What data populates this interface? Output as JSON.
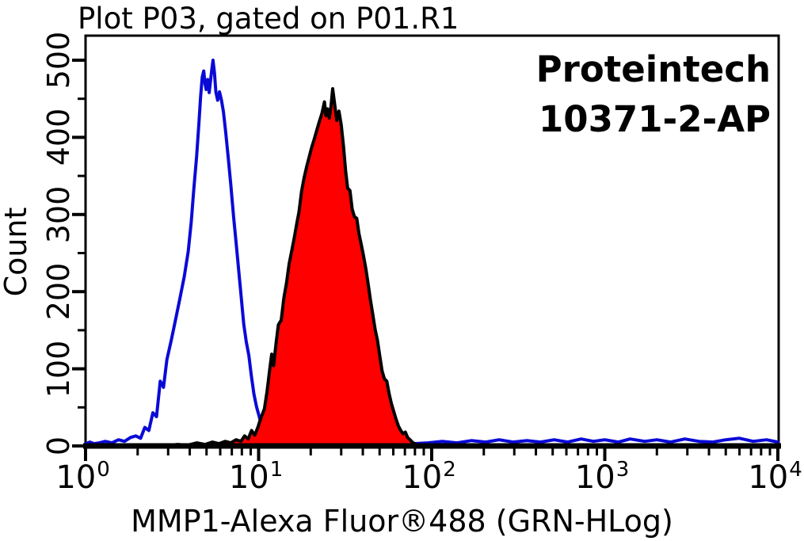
{
  "title": "Plot P03, gated on P01.R1",
  "watermark": {
    "line1": "Proteintech",
    "line2": "10371-2-AP"
  },
  "chart_data": {
    "type": "area",
    "subtype": "flow-cytometry-histogram-overlay",
    "title": "Plot P03, gated on P01.R1",
    "xlabel": "MMP1-Alexa Fluor®488 (GRN-HLog)",
    "ylabel": "Count",
    "xscale": "log",
    "xlim": [
      1,
      10000
    ],
    "ylim": [
      0,
      530
    ],
    "grid": false,
    "legend": "none",
    "x_ticks": [
      {
        "base": "10",
        "exp": "0"
      },
      {
        "base": "10",
        "exp": "1"
      },
      {
        "base": "10",
        "exp": "2"
      },
      {
        "base": "10",
        "exp": "3"
      },
      {
        "base": "10",
        "exp": "4"
      }
    ],
    "y_ticks": [
      0,
      100,
      200,
      300,
      400,
      500
    ],
    "axis_color": "#000000",
    "series": [
      {
        "name": "blue-outline-control",
        "line_color": "#0a0ad7",
        "fill": "none",
        "peak_x": 5.45,
        "peak_count": 500,
        "points": [
          [
            1.0,
            3
          ],
          [
            1.06,
            5
          ],
          [
            1.12,
            3
          ],
          [
            1.2,
            4
          ],
          [
            1.3,
            6
          ],
          [
            1.42,
            4
          ],
          [
            1.55,
            8
          ],
          [
            1.68,
            6
          ],
          [
            1.82,
            11
          ],
          [
            1.95,
            13
          ],
          [
            2.08,
            10
          ],
          [
            2.2,
            24
          ],
          [
            2.32,
            20
          ],
          [
            2.45,
            43
          ],
          [
            2.57,
            38
          ],
          [
            2.7,
            84
          ],
          [
            2.82,
            76
          ],
          [
            2.95,
            112
          ],
          [
            3.12,
            136
          ],
          [
            3.3,
            162
          ],
          [
            3.5,
            190
          ],
          [
            3.72,
            220
          ],
          [
            3.92,
            252
          ],
          [
            4.08,
            290
          ],
          [
            4.22,
            332
          ],
          [
            4.38,
            375
          ],
          [
            4.52,
            418
          ],
          [
            4.62,
            452
          ],
          [
            4.72,
            478
          ],
          [
            4.82,
            486
          ],
          [
            4.9,
            470
          ],
          [
            4.98,
            462
          ],
          [
            5.08,
            475
          ],
          [
            5.18,
            458
          ],
          [
            5.32,
            481
          ],
          [
            5.45,
            500
          ],
          [
            5.56,
            483
          ],
          [
            5.66,
            459
          ],
          [
            5.8,
            448
          ],
          [
            5.94,
            459
          ],
          [
            6.1,
            448
          ],
          [
            6.26,
            433
          ],
          [
            6.46,
            406
          ],
          [
            6.68,
            373
          ],
          [
            6.92,
            336
          ],
          [
            7.16,
            298
          ],
          [
            7.42,
            262
          ],
          [
            7.68,
            226
          ],
          [
            7.95,
            191
          ],
          [
            8.2,
            158
          ],
          [
            8.48,
            135
          ],
          [
            8.78,
            117
          ],
          [
            9.08,
            91
          ],
          [
            9.4,
            67
          ],
          [
            9.72,
            51
          ],
          [
            10.05,
            39
          ],
          [
            10.35,
            28
          ],
          [
            10.7,
            20
          ],
          [
            11.1,
            13
          ],
          [
            11.6,
            8
          ],
          [
            12.1,
            5
          ],
          [
            12.8,
            3
          ],
          [
            13.6,
            2
          ],
          [
            14.5,
            2
          ],
          [
            16,
            3
          ],
          [
            18,
            2
          ],
          [
            20,
            3
          ],
          [
            23,
            2
          ],
          [
            27,
            3
          ],
          [
            32,
            2
          ],
          [
            38,
            3
          ],
          [
            45,
            2
          ],
          [
            55,
            3
          ],
          [
            65,
            2
          ],
          [
            78,
            3
          ],
          [
            95,
            4
          ],
          [
            115,
            6
          ],
          [
            140,
            4
          ],
          [
            170,
            7
          ],
          [
            205,
            5
          ],
          [
            245,
            8
          ],
          [
            295,
            5
          ],
          [
            355,
            7
          ],
          [
            425,
            5
          ],
          [
            510,
            8
          ],
          [
            610,
            5
          ],
          [
            730,
            9
          ],
          [
            860,
            6
          ],
          [
            1000,
            8
          ],
          [
            1200,
            5
          ],
          [
            1400,
            9
          ],
          [
            1700,
            6
          ],
          [
            2000,
            8
          ],
          [
            2400,
            5
          ],
          [
            2900,
            9
          ],
          [
            3500,
            6
          ],
          [
            4200,
            5
          ],
          [
            5000,
            8
          ],
          [
            6000,
            10
          ],
          [
            7200,
            6
          ],
          [
            8600,
            8
          ],
          [
            10000,
            5
          ]
        ]
      },
      {
        "name": "red-filled-sample",
        "line_color": "#000000",
        "fill": "#ff0000",
        "peak_x": 26.8,
        "peak_count": 463,
        "points": [
          [
            1.0,
            0
          ],
          [
            1.6,
            0
          ],
          [
            2.2,
            1
          ],
          [
            2.8,
            0
          ],
          [
            3.4,
            2
          ],
          [
            3.9,
            1
          ],
          [
            4.4,
            4
          ],
          [
            4.9,
            2
          ],
          [
            5.4,
            5
          ],
          [
            5.9,
            3
          ],
          [
            6.4,
            6
          ],
          [
            6.9,
            4
          ],
          [
            7.4,
            8
          ],
          [
            7.9,
            6
          ],
          [
            8.3,
            13
          ],
          [
            8.7,
            9
          ],
          [
            9.1,
            20
          ],
          [
            9.5,
            14
          ],
          [
            9.9,
            24
          ],
          [
            10.3,
            36
          ],
          [
            10.8,
            48
          ],
          [
            11.2,
            72
          ],
          [
            11.6,
            100
          ],
          [
            11.9,
            119
          ],
          [
            12.2,
            104
          ],
          [
            12.6,
            132
          ],
          [
            13.0,
            157
          ],
          [
            13.5,
            163
          ],
          [
            14.0,
            192
          ],
          [
            14.5,
            212
          ],
          [
            15.0,
            236
          ],
          [
            15.5,
            252
          ],
          [
            16.1,
            271
          ],
          [
            16.6,
            288
          ],
          [
            17.1,
            303
          ],
          [
            17.7,
            330
          ],
          [
            18.3,
            347
          ],
          [
            18.9,
            361
          ],
          [
            19.5,
            373
          ],
          [
            20.2,
            386
          ],
          [
            20.9,
            397
          ],
          [
            21.6,
            408
          ],
          [
            22.4,
            420
          ],
          [
            23.2,
            431
          ],
          [
            24.0,
            446
          ],
          [
            24.5,
            428
          ],
          [
            25.0,
            437
          ],
          [
            25.6,
            425
          ],
          [
            26.2,
            441
          ],
          [
            26.8,
            463
          ],
          [
            27.5,
            443
          ],
          [
            28.3,
            422
          ],
          [
            29.1,
            434
          ],
          [
            30.0,
            416
          ],
          [
            30.9,
            389
          ],
          [
            31.8,
            357
          ],
          [
            32.7,
            334
          ],
          [
            33.7,
            331
          ],
          [
            34.7,
            307
          ],
          [
            35.8,
            297
          ],
          [
            36.9,
            295
          ],
          [
            38.0,
            275
          ],
          [
            39.2,
            261
          ],
          [
            40.4,
            246
          ],
          [
            41.7,
            229
          ],
          [
            43.0,
            209
          ],
          [
            44.3,
            189
          ],
          [
            45.7,
            170
          ],
          [
            47.1,
            151
          ],
          [
            48.6,
            137
          ],
          [
            50.1,
            117
          ],
          [
            51.7,
            97
          ],
          [
            53.3,
            87
          ],
          [
            55.0,
            84
          ],
          [
            56.7,
            68
          ],
          [
            58.5,
            55
          ],
          [
            60.3,
            45
          ],
          [
            62.2,
            35
          ],
          [
            64.2,
            26
          ],
          [
            66.2,
            20
          ],
          [
            68.3,
            16
          ],
          [
            70.4,
            18
          ],
          [
            72.6,
            11
          ],
          [
            74.9,
            8
          ],
          [
            77.2,
            5
          ],
          [
            79.6,
            3
          ],
          [
            82,
            1
          ],
          [
            86,
            0
          ],
          [
            120,
            0
          ],
          [
            500,
            0
          ],
          [
            3000,
            0
          ],
          [
            10000,
            0
          ]
        ]
      }
    ]
  }
}
